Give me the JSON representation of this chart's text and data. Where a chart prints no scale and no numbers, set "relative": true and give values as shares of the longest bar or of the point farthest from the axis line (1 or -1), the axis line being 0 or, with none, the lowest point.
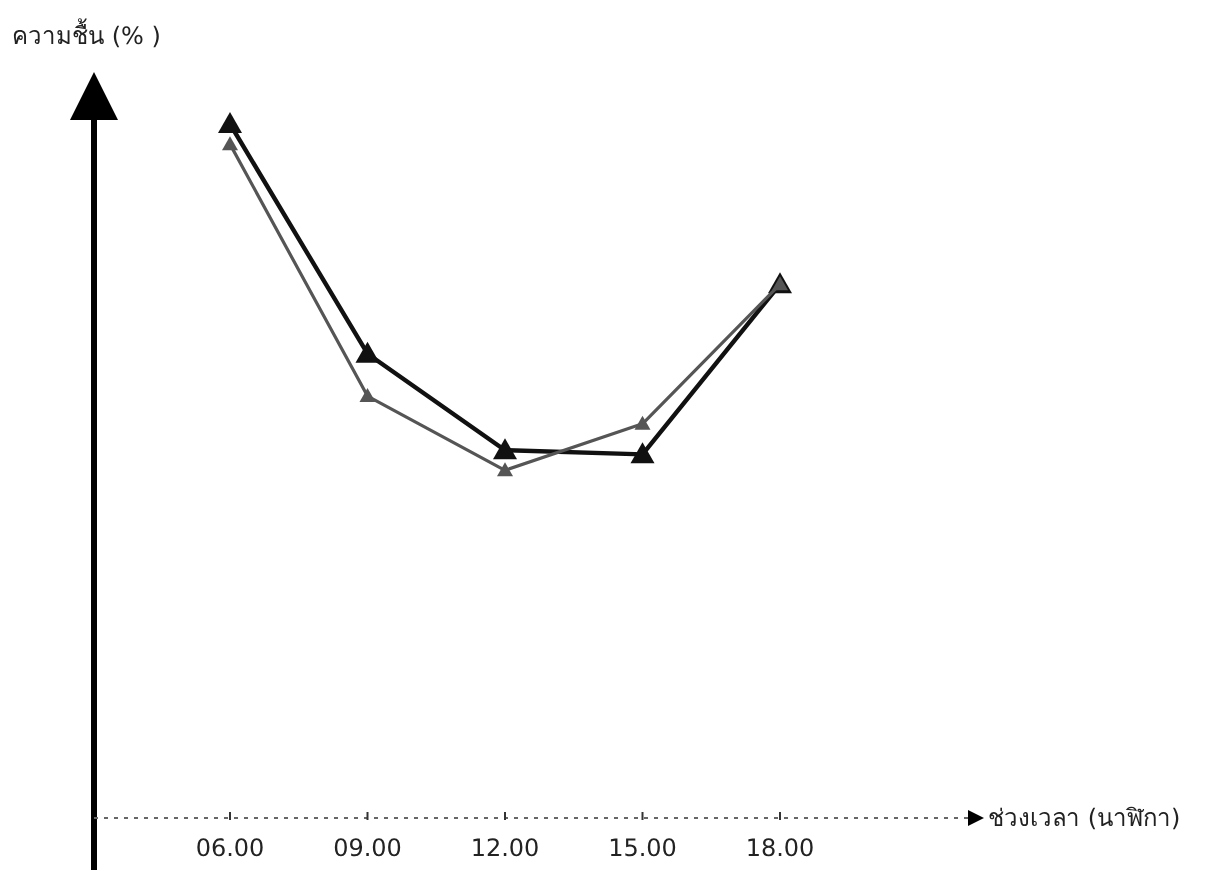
{
  "chart_data": {
    "type": "line",
    "relative": true,
    "ylabel": "ความชื้น (% )",
    "annotations": [
      "ช่วงเวลา (นาฬิกา)"
    ],
    "categories": [
      "06.00",
      "09.00",
      "12.00",
      "15.00",
      "18.00"
    ],
    "series": [
      {
        "color": "#111111",
        "values": [
          1,
          0.669,
          0.53,
          0.524,
          0.769
        ]
      },
      {
        "color": "#555555",
        "values": [
          0.971,
          0.608,
          0.501,
          0.568,
          0.769
        ]
      }
    ],
    "marker": "triangle"
  }
}
